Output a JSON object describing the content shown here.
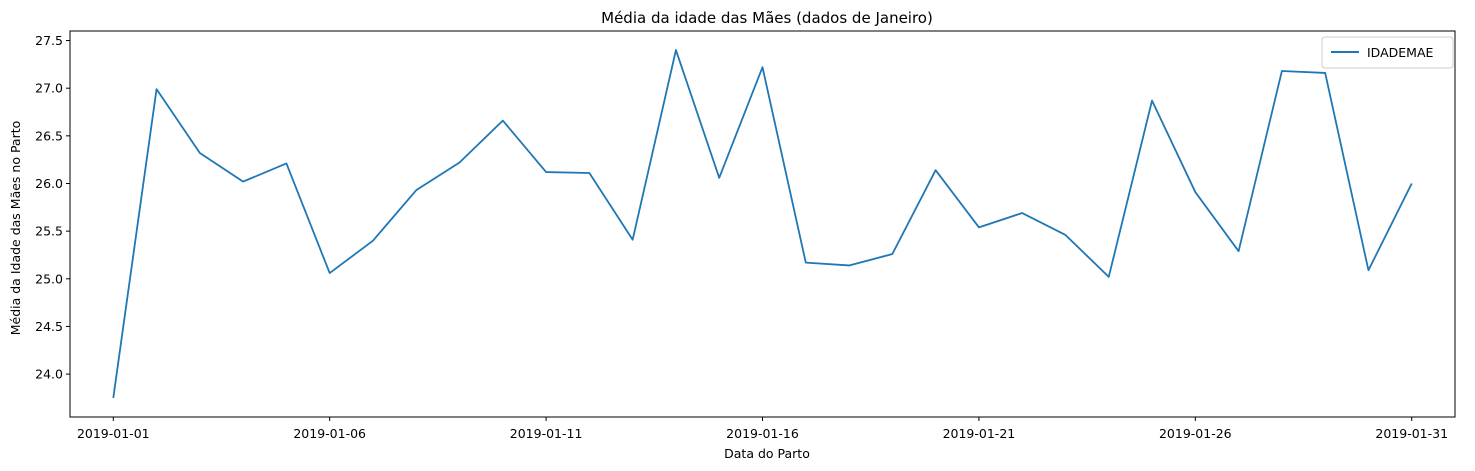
{
  "chart_data": {
    "type": "line",
    "title": "Média da idade das Mães (dados de Janeiro)",
    "xlabel": "Data do Parto",
    "ylabel": "Média da Idade das Mães no Parto",
    "x_ticks": [
      "2019-01-01",
      "2019-01-06",
      "2019-01-11",
      "2019-01-16",
      "2019-01-21",
      "2019-01-26",
      "2019-01-31"
    ],
    "x_tick_days": [
      1,
      6,
      11,
      16,
      21,
      26,
      31
    ],
    "y_ticks": [
      "24.0",
      "24.5",
      "25.0",
      "25.5",
      "26.0",
      "26.5",
      "27.0",
      "27.5"
    ],
    "ylim": [
      23.55,
      27.6
    ],
    "xlim": [
      "2018-12-31",
      "2019-02-01"
    ],
    "grid": false,
    "legend_position": "top-right",
    "series": [
      {
        "name": "IDADEMAE",
        "color": "#1f77b4",
        "x": [
          "2019-01-01",
          "2019-01-02",
          "2019-01-03",
          "2019-01-04",
          "2019-01-05",
          "2019-01-06",
          "2019-01-07",
          "2019-01-08",
          "2019-01-09",
          "2019-01-10",
          "2019-01-11",
          "2019-01-12",
          "2019-01-13",
          "2019-01-14",
          "2019-01-15",
          "2019-01-16",
          "2019-01-17",
          "2019-01-18",
          "2019-01-19",
          "2019-01-20",
          "2019-01-21",
          "2019-01-22",
          "2019-01-23",
          "2019-01-24",
          "2019-01-25",
          "2019-01-26",
          "2019-01-27",
          "2019-01-28",
          "2019-01-29",
          "2019-01-30",
          "2019-01-31"
        ],
        "values": [
          23.75,
          26.99,
          26.32,
          26.02,
          26.21,
          25.06,
          25.4,
          25.93,
          26.22,
          26.66,
          26.12,
          26.11,
          25.41,
          27.4,
          26.06,
          27.22,
          25.17,
          25.14,
          25.26,
          26.14,
          25.54,
          25.69,
          25.46,
          25.02,
          26.87,
          25.91,
          25.29,
          27.18,
          27.16,
          25.09,
          26.0
        ]
      }
    ]
  }
}
